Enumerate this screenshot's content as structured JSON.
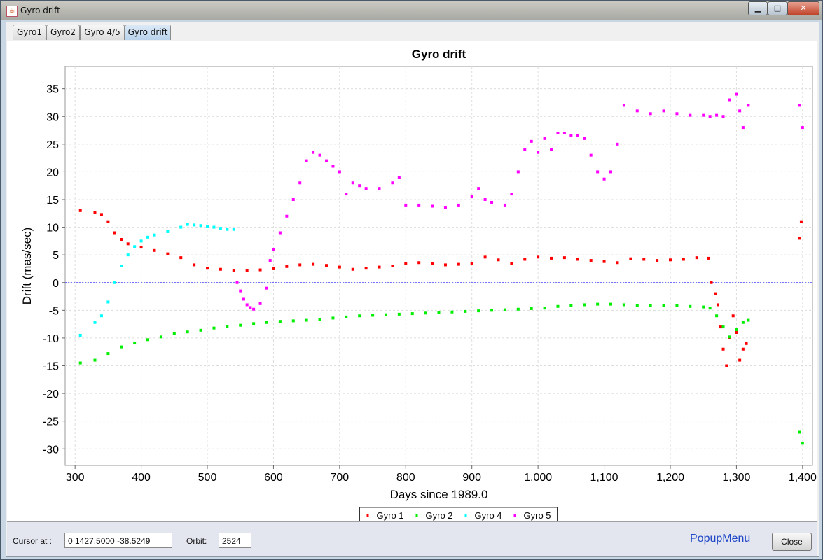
{
  "window": {
    "title": "Gyro drift",
    "buttons": [
      "minimize-button",
      "maximize-button",
      "close-button"
    ]
  },
  "tabs": [
    {
      "label": "Gyro1",
      "active": false
    },
    {
      "label": "Gyro2",
      "active": false
    },
    {
      "label": "Gyro 4/5",
      "active": false
    },
    {
      "label": "Gyro drift",
      "active": true
    }
  ],
  "bottom": {
    "cursor_label": "Cursor at :",
    "cursor_value": "0  1427.5000  -38.5249",
    "orbit_label": "Orbit:",
    "orbit_value": "2524",
    "popup_label": "PopupMenu",
    "close_label": "Close"
  },
  "chart_data": {
    "type": "scatter",
    "title": "Gyro drift",
    "xlabel": "Days since 1989.0",
    "ylabel": "Drift (mas/sec)",
    "xlim": [
      285,
      1415
    ],
    "ylim": [
      -33,
      39
    ],
    "xticks": [
      "300",
      "400",
      "500",
      "600",
      "700",
      "800",
      "900",
      "1,000",
      "1,100",
      "1,200",
      "1,300",
      "1,400"
    ],
    "yticks": [
      "35",
      "30",
      "25",
      "20",
      "15",
      "10",
      "5",
      "0",
      "-5",
      "-10",
      "-15",
      "-20",
      "-25",
      "-30"
    ],
    "zero_line": true,
    "grid": true,
    "legend_position": "bottom",
    "series": [
      {
        "name": "Gyro 1",
        "color": "#ff0000",
        "x": [
          308,
          330,
          340,
          350,
          360,
          370,
          380,
          400,
          420,
          440,
          460,
          480,
          500,
          520,
          540,
          560,
          580,
          600,
          620,
          640,
          660,
          680,
          700,
          720,
          740,
          760,
          780,
          800,
          820,
          840,
          860,
          880,
          900,
          920,
          940,
          960,
          980,
          1000,
          1020,
          1040,
          1060,
          1080,
          1100,
          1120,
          1140,
          1160,
          1180,
          1200,
          1220,
          1240,
          1258,
          1262,
          1268,
          1272,
          1276,
          1280,
          1285,
          1290,
          1295,
          1300,
          1305,
          1310,
          1315,
          1395,
          1398
        ],
        "y": [
          13,
          12.6,
          12.3,
          11,
          9,
          7.8,
          7,
          6.4,
          5.8,
          5.2,
          4.5,
          3.2,
          2.6,
          2.4,
          2.2,
          2.2,
          2.3,
          2.5,
          2.9,
          3.2,
          3.3,
          3.1,
          2.8,
          2.4,
          2.6,
          2.8,
          3,
          3.4,
          3.6,
          3.4,
          3.2,
          3.3,
          3.4,
          4.6,
          4.1,
          3.4,
          4.2,
          4.6,
          4.4,
          4.5,
          4.2,
          4,
          3.8,
          3.6,
          4.3,
          4.2,
          4,
          4.1,
          4.2,
          4.5,
          4.4,
          0,
          -2,
          -4,
          -8,
          -12,
          -15,
          -10,
          -6,
          -9,
          -14,
          -12,
          -11,
          8,
          11
        ]
      },
      {
        "name": "Gyro 2",
        "color": "#00ee00",
        "x": [
          308,
          330,
          350,
          370,
          390,
          410,
          430,
          450,
          470,
          490,
          510,
          530,
          550,
          570,
          590,
          610,
          630,
          650,
          670,
          690,
          710,
          730,
          750,
          770,
          790,
          810,
          830,
          850,
          870,
          890,
          910,
          930,
          950,
          970,
          990,
          1010,
          1030,
          1050,
          1070,
          1090,
          1110,
          1130,
          1150,
          1170,
          1190,
          1210,
          1230,
          1250,
          1260,
          1270,
          1280,
          1290,
          1300,
          1310,
          1318,
          1395,
          1400
        ],
        "y": [
          -14.5,
          -14,
          -12.8,
          -11.6,
          -10.9,
          -10.3,
          -9.8,
          -9.2,
          -8.9,
          -8.6,
          -8.2,
          -7.9,
          -7.7,
          -7.4,
          -7.2,
          -7,
          -6.9,
          -6.8,
          -6.6,
          -6.4,
          -6.2,
          -6,
          -5.9,
          -5.8,
          -5.7,
          -5.6,
          -5.5,
          -5.4,
          -5.3,
          -5.2,
          -5.1,
          -5,
          -4.9,
          -4.8,
          -4.7,
          -4.6,
          -4.3,
          -4.1,
          -4,
          -3.9,
          -3.9,
          -4,
          -4.1,
          -4.1,
          -4.2,
          -4.2,
          -4.3,
          -4.4,
          -4.6,
          -6,
          -8,
          -9.8,
          -8.5,
          -7.2,
          -6.8,
          -27,
          -29
        ]
      },
      {
        "name": "Gyro 4",
        "color": "#00ffff",
        "x": [
          308,
          330,
          340,
          350,
          360,
          370,
          380,
          390,
          400,
          410,
          420,
          440,
          460,
          470,
          480,
          490,
          500,
          510,
          520,
          530,
          540
        ],
        "y": [
          -9.5,
          -7.2,
          -6,
          -3.5,
          0,
          3,
          5,
          6.5,
          7.5,
          8.2,
          8.6,
          9.2,
          10,
          10.5,
          10.4,
          10.3,
          10.2,
          10,
          9.8,
          9.6,
          9.6
        ]
      },
      {
        "name": "Gyro 5",
        "color": "#ff00ff",
        "x": [
          545,
          550,
          555,
          560,
          565,
          570,
          580,
          590,
          595,
          600,
          610,
          620,
          630,
          640,
          650,
          660,
          670,
          680,
          690,
          700,
          710,
          720,
          730,
          740,
          760,
          780,
          790,
          800,
          820,
          840,
          860,
          880,
          900,
          910,
          920,
          930,
          950,
          960,
          970,
          980,
          990,
          1000,
          1010,
          1020,
          1030,
          1040,
          1050,
          1060,
          1070,
          1080,
          1090,
          1100,
          1110,
          1120,
          1130,
          1150,
          1170,
          1190,
          1210,
          1230,
          1250,
          1260,
          1270,
          1280,
          1290,
          1300,
          1305,
          1310,
          1318,
          1395,
          1400
        ],
        "y": [
          0,
          -1.5,
          -3,
          -4,
          -4.5,
          -4.8,
          -3.8,
          -1,
          4,
          6,
          9,
          12,
          15,
          18,
          22,
          23.5,
          23,
          22,
          21,
          20,
          16,
          18,
          17.5,
          17,
          17,
          18,
          19,
          14,
          14,
          13.8,
          13.6,
          14,
          15.5,
          17,
          15,
          14.5,
          14,
          16,
          20,
          24,
          25.5,
          23.5,
          26,
          24,
          27,
          27,
          26.5,
          26.5,
          26,
          23,
          20,
          18.7,
          20,
          25,
          32,
          31,
          30.5,
          31,
          30.5,
          30.2,
          30.2,
          30,
          30.2,
          30,
          33,
          34,
          31,
          28,
          32,
          32,
          28
        ]
      }
    ]
  }
}
